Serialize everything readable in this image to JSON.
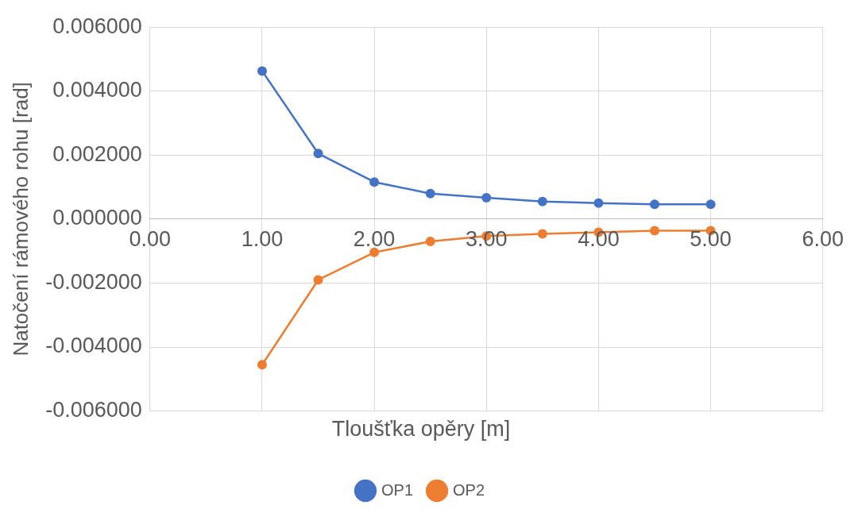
{
  "chart_data": {
    "type": "line",
    "xlabel": "Tloušťka opěry [m]",
    "ylabel": "Natočení rámového rohu [rad]",
    "x": [
      1,
      1.5,
      2,
      2.5,
      3,
      3.5,
      4,
      4.5,
      5
    ],
    "series": [
      {
        "name": "OP1",
        "color": "#4472c4",
        "values": [
          0.00463,
          0.00205,
          0.00116,
          0.0008,
          0.00067,
          0.00055,
          0.0005,
          0.00046,
          0.00046
        ]
      },
      {
        "name": "OP2",
        "color": "#ed7d31",
        "values": [
          -0.00455,
          -0.0019,
          -0.00104,
          -0.0007,
          -0.00053,
          -0.00046,
          -0.00041,
          -0.00036,
          -0.00036
        ]
      }
    ],
    "xlim": [
      0,
      6
    ],
    "xticks": [
      {
        "value": 0,
        "label": "0.00"
      },
      {
        "value": 1,
        "label": "1.00"
      },
      {
        "value": 2,
        "label": "2.00"
      },
      {
        "value": 3,
        "label": "3.00"
      },
      {
        "value": 4,
        "label": "4.00"
      },
      {
        "value": 5,
        "label": "5.00"
      },
      {
        "value": 6,
        "label": "6.00"
      }
    ],
    "ylim": [
      -0.006,
      0.006
    ],
    "yticks": [
      {
        "value": -0.006,
        "label": "-0.006000"
      },
      {
        "value": -0.004,
        "label": "-0.004000"
      },
      {
        "value": -0.002,
        "label": "-0.002000"
      },
      {
        "value": 0,
        "label": "0.000000"
      },
      {
        "value": 0.002,
        "label": "0.002000"
      },
      {
        "value": 0.004,
        "label": "0.004000"
      },
      {
        "value": 0.006,
        "label": "0.006000"
      }
    ],
    "grid": true,
    "legend": "bottom",
    "marker": "circle",
    "line_style": "solid"
  }
}
